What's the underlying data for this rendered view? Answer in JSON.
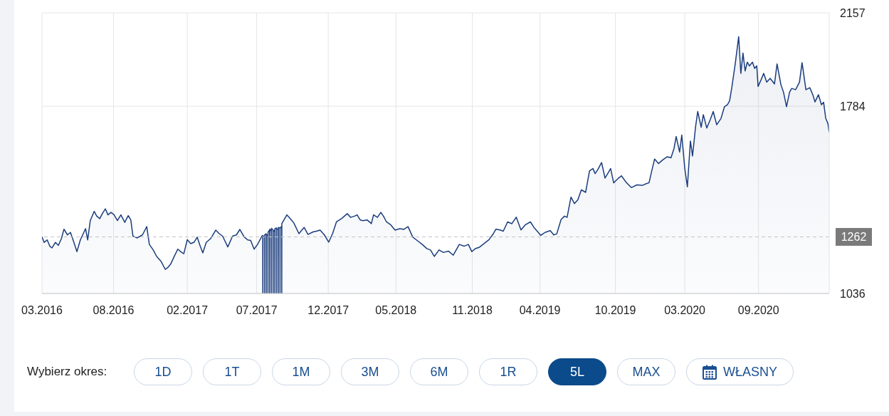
{
  "chart_data": {
    "type": "area",
    "color": "#1b3d7d",
    "x": [
      "2016-03-01",
      "2016-03-06",
      "2016-03-13",
      "2016-03-19",
      "2016-03-24",
      "2016-04-01",
      "2016-04-08",
      "2016-04-15",
      "2016-04-21",
      "2016-04-29",
      "2016-05-06",
      "2016-05-14",
      "2016-05-21",
      "2016-05-29",
      "2016-06-06",
      "2016-06-10",
      "2016-06-15",
      "2016-06-21",
      "2016-06-30",
      "2016-07-06",
      "2016-07-13",
      "2016-07-19",
      "2016-07-26",
      "2016-08-01",
      "2016-08-08",
      "2016-08-15",
      "2016-08-23",
      "2016-08-31",
      "2016-09-09",
      "2016-09-17",
      "2016-09-23",
      "2016-09-28",
      "2016-10-08",
      "2016-10-20",
      "2016-10-30",
      "2016-11-05",
      "2016-11-14",
      "2016-11-22",
      "2016-12-02",
      "2016-12-12",
      "2016-12-18",
      "2016-12-25",
      "2017-01-02",
      "2017-01-10",
      "2017-01-19",
      "2017-01-24",
      "2017-02-01",
      "2017-02-09",
      "2017-02-17",
      "2017-02-24",
      "2017-03-03",
      "2017-03-09",
      "2017-03-17",
      "2017-03-27",
      "2017-04-08",
      "2017-04-16",
      "2017-04-24",
      "2017-05-06",
      "2017-05-17",
      "2017-05-26",
      "2017-06-03",
      "2017-06-13",
      "2017-06-21",
      "2017-06-28",
      "2017-07-06",
      "2017-07-14",
      "2017-07-24",
      "2017-07-26",
      "2017-07-26T04:00",
      "2017-07-26T08:00",
      "2017-07-30",
      "2017-07-30T04:00",
      "2017-07-30T08:00",
      "2017-08-03",
      "2017-08-03T04:00",
      "2017-08-03T08:00",
      "2017-08-07",
      "2017-08-07T04:00",
      "2017-08-07T08:00",
      "2017-08-11",
      "2017-08-11T04:00",
      "2017-08-11T08:00",
      "2017-08-15",
      "2017-08-15T04:00",
      "2017-08-15T08:00",
      "2017-08-19",
      "2017-08-19T04:00",
      "2017-08-19T08:00",
      "2017-08-23",
      "2017-08-23T04:00",
      "2017-08-23T08:00",
      "2017-08-27",
      "2017-08-27T04:00",
      "2017-08-27T08:00",
      "2017-08-31",
      "2017-08-31T04:00",
      "2017-08-31T08:00",
      "2017-09-04",
      "2017-09-04T04:00",
      "2017-09-04T08:00",
      "2017-09-08",
      "2017-09-08T04:00",
      "2017-09-08T08:00",
      "2017-09-20",
      "2017-09-28",
      "2017-10-06",
      "2017-10-18",
      "2017-10-30",
      "2017-11-08",
      "2017-11-20",
      "2017-11-28",
      "2017-12-06",
      "2017-12-16",
      "2017-12-26",
      "2018-01-04",
      "2018-01-13",
      "2018-01-25",
      "2018-02-07",
      "2018-02-15",
      "2018-02-24",
      "2018-03-02",
      "2018-03-09",
      "2018-03-16",
      "2018-03-25",
      "2018-04-04",
      "2018-04-09",
      "2018-04-18",
      "2018-04-26",
      "2018-05-02",
      "2018-05-09",
      "2018-05-19",
      "2018-05-29",
      "2018-06-09",
      "2018-06-18",
      "2018-06-28",
      "2018-07-09",
      "2018-07-19",
      "2018-07-31",
      "2018-08-11",
      "2018-08-19",
      "2018-08-28",
      "2018-09-08",
      "2018-09-18",
      "2018-09-30",
      "2018-10-11",
      "2018-10-25",
      "2018-11-05",
      "2018-11-15",
      "2018-11-23",
      "2018-12-01",
      "2018-12-10",
      "2018-12-21",
      "2019-01-02",
      "2019-01-12",
      "2019-01-18",
      "2019-01-27",
      "2019-02-04",
      "2019-02-14",
      "2019-02-24",
      "2019-03-06",
      "2019-03-17",
      "2019-03-27",
      "2019-04-08",
      "2019-04-16",
      "2019-04-24",
      "2019-05-02",
      "2019-05-12",
      "2019-05-24",
      "2019-06-01",
      "2019-06-08",
      "2019-06-18",
      "2019-06-26",
      "2019-07-02",
      "2019-07-11",
      "2019-07-19",
      "2019-07-27",
      "2019-08-04",
      "2019-08-14",
      "2019-08-23",
      "2019-08-31",
      "2019-09-05",
      "2019-09-11",
      "2019-09-20",
      "2019-09-28",
      "2019-10-06",
      "2019-10-11",
      "2019-10-18",
      "2019-10-28",
      "2019-11-05",
      "2019-11-16",
      "2019-11-28",
      "2019-12-11",
      "2019-12-24",
      "2020-01-02",
      "2020-01-08",
      "2020-01-15",
      "2020-01-21",
      "2020-01-30",
      "2020-02-09",
      "2020-02-19",
      "2020-02-28",
      "2020-03-06",
      "2020-03-11",
      "2020-03-19",
      "2020-03-24",
      "2020-03-31",
      "2020-04-06",
      "2020-04-13",
      "2020-04-18",
      "2020-04-25",
      "2020-04-30",
      "2020-05-08",
      "2020-05-13",
      "2020-05-21",
      "2020-05-29",
      "2020-06-05",
      "2020-06-13",
      "2020-06-23",
      "2020-07-01",
      "2020-07-08",
      "2020-07-13",
      "2020-07-18",
      "2020-07-26",
      "2020-08-03",
      "2020-08-08",
      "2020-08-13",
      "2020-08-18",
      "2020-08-23",
      "2020-08-28",
      "2020-09-04",
      "2020-09-09",
      "2020-09-14",
      "2020-09-17",
      "2020-09-24",
      "2020-09-30",
      "2020-10-07",
      "2020-10-15",
      "2020-10-25",
      "2020-10-31",
      "2020-11-09",
      "2020-11-15",
      "2020-11-22",
      "2020-11-29",
      "2020-12-04",
      "2020-12-13",
      "2020-12-22",
      "2020-12-28",
      "2021-01-06",
      "2021-01-15",
      "2021-01-22",
      "2021-01-27",
      "2021-02-04",
      "2021-02-11",
      "2021-02-16",
      "2021-02-21",
      "2021-02-26",
      "2021-03-01"
    ],
    "values": [
      1262,
      1240,
      1250,
      1225,
      1218,
      1240,
      1228,
      1255,
      1293,
      1270,
      1280,
      1240,
      1203,
      1250,
      1280,
      1295,
      1250,
      1327,
      1364,
      1345,
      1335,
      1355,
      1374,
      1350,
      1360,
      1351,
      1327,
      1350,
      1320,
      1347,
      1330,
      1265,
      1258,
      1270,
      1303,
      1232,
      1210,
      1184,
      1165,
      1132,
      1140,
      1155,
      1185,
      1213,
      1200,
      1195,
      1251,
      1235,
      1241,
      1261,
      1225,
      1198,
      1240,
      1255,
      1289,
      1275,
      1265,
      1222,
      1265,
      1270,
      1292,
      1262,
      1250,
      1248,
      1213,
      1232,
      1265,
      1268,
      1036,
      1266,
      1262,
      1036,
      1270,
      1275,
      1036,
      1272,
      1268,
      1036,
      1280,
      1290,
      1036,
      1293,
      1285,
      1036,
      1296,
      1290,
      1036,
      1284,
      1288,
      1036,
      1295,
      1298,
      1036,
      1292,
      1294,
      1036,
      1300,
      1298,
      1036,
      1296,
      1305,
      1036,
      1315,
      1350,
      1335,
      1318,
      1275,
      1300,
      1272,
      1282,
      1285,
      1289,
      1270,
      1241,
      1275,
      1322,
      1335,
      1355,
      1340,
      1345,
      1350,
      1330,
      1327,
      1330,
      1315,
      1350,
      1340,
      1360,
      1345,
      1322,
      1310,
      1289,
      1295,
      1292,
      1303,
      1261,
      1248,
      1232,
      1215,
      1210,
      1184,
      1210,
      1200,
      1205,
      1189,
      1232,
      1225,
      1232,
      1203,
      1215,
      1220,
      1235,
      1251,
      1275,
      1293,
      1290,
      1285,
      1322,
      1315,
      1341,
      1290,
      1310,
      1322,
      1300,
      1284,
      1268,
      1280,
      1287,
      1270,
      1274,
      1331,
      1345,
      1340,
      1421,
      1395,
      1410,
      1450,
      1440,
      1526,
      1535,
      1515,
      1530,
      1559,
      1497,
      1520,
      1535,
      1478,
      1495,
      1506,
      1480,
      1459,
      1470,
      1468,
      1475,
      1478,
      1530,
      1573,
      1555,
      1570,
      1582,
      1578,
      1615,
      1663,
      1601,
      1669,
      1535,
      1462,
      1645,
      1585,
      1702,
      1763,
      1700,
      1750,
      1697,
      1730,
      1763,
      1710,
      1735,
      1782,
      1790,
      1806,
      1858,
      1953,
      2062,
      1915,
      1996,
      1925,
      1960,
      1945,
      1960,
      1935,
      1945,
      1863,
      1890,
      1915,
      1880,
      1895,
      1873,
      1953,
      1870,
      1840,
      1782,
      1840,
      1855,
      1850,
      1880,
      1958,
      1850,
      1858,
      1830,
      1801,
      1830,
      1790,
      1800,
      1735,
      1715,
      1680
    ],
    "xlim": [
      "2016-03-01",
      "2021-03-01"
    ],
    "xticks": [
      {
        "value": "2016-03-01",
        "label": "03.2016"
      },
      {
        "value": "2016-08-14",
        "label": "08.2016"
      },
      {
        "value": "2017-02-01",
        "label": "02.2017"
      },
      {
        "value": "2017-07-12",
        "label": "07.2017"
      },
      {
        "value": "2017-12-25",
        "label": "12.2017"
      },
      {
        "value": "2018-05-31",
        "label": "05.2018"
      },
      {
        "value": "2018-11-24",
        "label": "11.2018"
      },
      {
        "value": "2019-04-30",
        "label": "04.2019"
      },
      {
        "value": "2019-10-22",
        "label": "10.2019"
      },
      {
        "value": "2020-03-31",
        "label": "03.2020"
      },
      {
        "value": "2020-09-18",
        "label": "09.2020"
      }
    ],
    "ylim": [
      1036,
      2157
    ],
    "yticks": [
      1036,
      1784,
      2157
    ],
    "grid": true,
    "ref_lines": [
      {
        "axis": "y",
        "value": 1262,
        "label": "1262",
        "color": "#c4c4c4",
        "line_style": "dashed"
      }
    ],
    "annotations": [
      "Wybierz okres:",
      "1D",
      "1T",
      "1M",
      "3M",
      "6M",
      "1R",
      "5L",
      "MAX",
      "WŁASNY"
    ]
  }
}
